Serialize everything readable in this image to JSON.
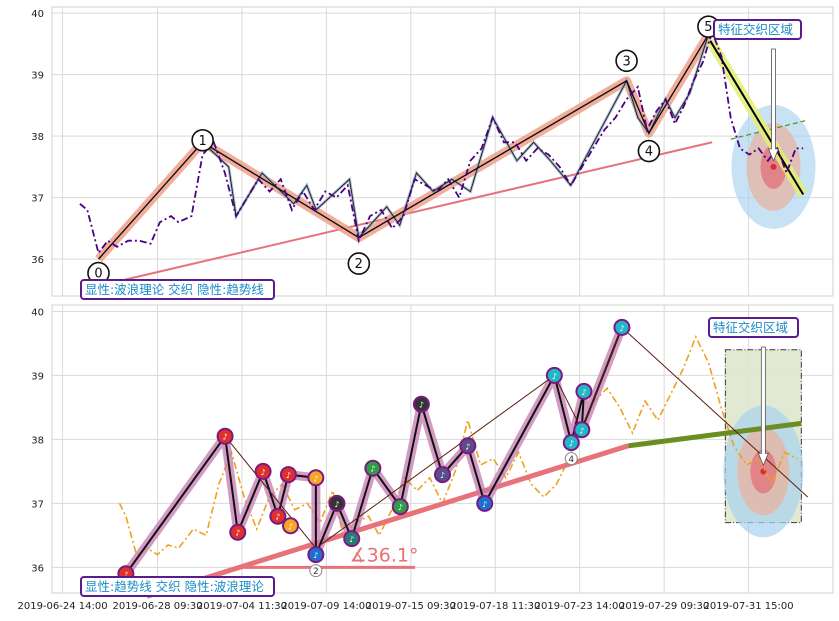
{
  "chart_data": [
    {
      "type": "line",
      "panel": "top",
      "ylim": [
        35.4,
        40.1
      ],
      "yticks": [
        36,
        37,
        38,
        39,
        40
      ],
      "grid": true,
      "price": [
        {
          "x": 0.0,
          "y": 36.9
        },
        {
          "x": 0.4,
          "y": 36.8
        },
        {
          "x": 1.0,
          "y": 36.1
        },
        {
          "x": 1.5,
          "y": 36.3
        },
        {
          "x": 2.0,
          "y": 36.2
        },
        {
          "x": 2.6,
          "y": 36.3
        },
        {
          "x": 3.2,
          "y": 36.3
        },
        {
          "x": 3.8,
          "y": 36.25
        },
        {
          "x": 4.3,
          "y": 36.6
        },
        {
          "x": 4.9,
          "y": 36.7
        },
        {
          "x": 5.3,
          "y": 36.6
        },
        {
          "x": 6.0,
          "y": 36.7
        },
        {
          "x": 6.6,
          "y": 37.7
        },
        {
          "x": 7.2,
          "y": 37.9
        },
        {
          "x": 7.8,
          "y": 37.4
        },
        {
          "x": 8.4,
          "y": 36.7
        },
        {
          "x": 9.0,
          "y": 37.0
        },
        {
          "x": 9.6,
          "y": 37.3
        },
        {
          "x": 10.2,
          "y": 37.1
        },
        {
          "x": 10.8,
          "y": 37.3
        },
        {
          "x": 11.4,
          "y": 36.8
        },
        {
          "x": 12.0,
          "y": 37.1
        },
        {
          "x": 12.6,
          "y": 36.8
        },
        {
          "x": 13.2,
          "y": 37.1
        },
        {
          "x": 13.8,
          "y": 37.0
        },
        {
          "x": 14.4,
          "y": 37.2
        },
        {
          "x": 15.0,
          "y": 36.3
        },
        {
          "x": 15.6,
          "y": 36.7
        },
        {
          "x": 16.2,
          "y": 36.8
        },
        {
          "x": 16.8,
          "y": 36.5
        },
        {
          "x": 17.4,
          "y": 36.7
        },
        {
          "x": 18.0,
          "y": 37.3
        },
        {
          "x": 18.6,
          "y": 37.2
        },
        {
          "x": 19.2,
          "y": 37.1
        },
        {
          "x": 19.8,
          "y": 37.3
        },
        {
          "x": 20.4,
          "y": 37.0
        },
        {
          "x": 21.0,
          "y": 37.6
        },
        {
          "x": 21.6,
          "y": 37.8
        },
        {
          "x": 22.2,
          "y": 38.3
        },
        {
          "x": 22.8,
          "y": 37.9
        },
        {
          "x": 23.4,
          "y": 37.9
        },
        {
          "x": 24.0,
          "y": 37.6
        },
        {
          "x": 24.6,
          "y": 37.8
        },
        {
          "x": 25.2,
          "y": 37.7
        },
        {
          "x": 25.8,
          "y": 37.5
        },
        {
          "x": 26.4,
          "y": 37.2
        },
        {
          "x": 27.0,
          "y": 37.5
        },
        {
          "x": 27.6,
          "y": 37.8
        },
        {
          "x": 28.2,
          "y": 38.1
        },
        {
          "x": 28.8,
          "y": 38.3
        },
        {
          "x": 29.4,
          "y": 38.6
        },
        {
          "x": 30.0,
          "y": 38.8
        },
        {
          "x": 30.5,
          "y": 38.1
        },
        {
          "x": 31.0,
          "y": 38.4
        },
        {
          "x": 31.5,
          "y": 38.6
        },
        {
          "x": 32.0,
          "y": 38.2
        },
        {
          "x": 32.5,
          "y": 38.5
        },
        {
          "x": 33.0,
          "y": 38.9
        },
        {
          "x": 33.5,
          "y": 39.2
        },
        {
          "x": 34.0,
          "y": 39.7
        },
        {
          "x": 34.5,
          "y": 39.3
        },
        {
          "x": 35.0,
          "y": 38.3
        },
        {
          "x": 35.5,
          "y": 37.8
        },
        {
          "x": 36.0,
          "y": 37.7
        },
        {
          "x": 36.5,
          "y": 37.8
        },
        {
          "x": 37.0,
          "y": 37.6
        },
        {
          "x": 37.5,
          "y": 37.8
        },
        {
          "x": 38.0,
          "y": 37.4
        },
        {
          "x": 38.5,
          "y": 37.8
        },
        {
          "x": 38.9,
          "y": 37.8
        }
      ],
      "wave": [
        {
          "label": "0",
          "x": 1.0,
          "y": 36.0
        },
        {
          "label": "1",
          "x": 6.6,
          "y": 37.9
        },
        {
          "label": "2",
          "x": 15.0,
          "y": 36.35
        },
        {
          "label": "3",
          "x": 29.4,
          "y": 38.9
        },
        {
          "label": "4",
          "x": 30.6,
          "y": 38.05
        },
        {
          "label": "5",
          "x": 33.8,
          "y": 39.65
        }
      ],
      "sub_wave": [
        {
          "x": 6.6,
          "y": 37.9
        },
        {
          "x": 8.0,
          "y": 37.5
        },
        {
          "x": 8.4,
          "y": 36.7
        },
        {
          "x": 9.8,
          "y": 37.4
        },
        {
          "x": 11.5,
          "y": 36.9
        },
        {
          "x": 12.2,
          "y": 37.2
        },
        {
          "x": 12.7,
          "y": 36.8
        },
        {
          "x": 14.5,
          "y": 37.3
        },
        {
          "x": 15.0,
          "y": 36.35
        },
        {
          "x": 16.5,
          "y": 36.85
        },
        {
          "x": 17.2,
          "y": 36.55
        },
        {
          "x": 18.1,
          "y": 37.4
        },
        {
          "x": 19.0,
          "y": 37.1
        },
        {
          "x": 20.0,
          "y": 37.3
        },
        {
          "x": 21.0,
          "y": 37.1
        },
        {
          "x": 22.2,
          "y": 38.3
        },
        {
          "x": 23.5,
          "y": 37.6
        },
        {
          "x": 24.4,
          "y": 37.9
        },
        {
          "x": 25.3,
          "y": 37.6
        },
        {
          "x": 26.4,
          "y": 37.2
        },
        {
          "x": 29.4,
          "y": 38.9
        },
        {
          "x": 30.0,
          "y": 38.3
        },
        {
          "x": 30.6,
          "y": 38.05
        },
        {
          "x": 31.5,
          "y": 38.6
        },
        {
          "x": 32.0,
          "y": 38.3
        },
        {
          "x": 32.8,
          "y": 38.7
        },
        {
          "x": 33.8,
          "y": 39.65
        }
      ],
      "trendline": [
        {
          "x": 1.5,
          "y": 35.6
        },
        {
          "x": 34.0,
          "y": 37.9
        }
      ],
      "projection": [
        {
          "x": 33.9,
          "y": 39.55
        },
        {
          "x": 38.9,
          "y": 37.05
        }
      ],
      "channel": [
        {
          "x": 35.0,
          "y": 37.95
        },
        {
          "x": 39.0,
          "y": 38.25
        }
      ],
      "zone": {
        "x": 37.3,
        "y": 37.5,
        "rx": 2.2,
        "ry": 1.0
      },
      "annotations": [
        {
          "text": "特征交织区域",
          "x": 37.1,
          "y": 39.7
        },
        {
          "text": "显性:波浪理论 交织 隐性:趋势线",
          "x": 0.0,
          "y": 35.55
        }
      ]
    },
    {
      "type": "line",
      "panel": "bottom",
      "ylim": [
        35.6,
        40.1
      ],
      "yticks": [
        36,
        37,
        38,
        39,
        40
      ],
      "grid": true,
      "xtick_labels": [
        "2019-06-24 14:00",
        "2019-06-28 09:30",
        "2019-07-04 11:30",
        "2019-07-09 14:00",
        "2019-07-15 09:30",
        "2019-07-18 11:30",
        "2019-07-23 14:00",
        "2019-07-29 09:30",
        "2019-07-31 15:00"
      ],
      "xtick_x": [
        -3.0,
        1.5,
        5.5,
        9.5,
        13.5,
        17.5,
        21.5,
        25.5,
        29.5
      ],
      "price": [
        {
          "x": -0.3,
          "y": 37.0
        },
        {
          "x": 0.0,
          "y": 36.8
        },
        {
          "x": 0.5,
          "y": 36.2
        },
        {
          "x": 1.0,
          "y": 36.3
        },
        {
          "x": 1.5,
          "y": 36.2
        },
        {
          "x": 2.0,
          "y": 36.35
        },
        {
          "x": 2.5,
          "y": 36.3
        },
        {
          "x": 3.2,
          "y": 36.6
        },
        {
          "x": 3.8,
          "y": 36.5
        },
        {
          "x": 4.4,
          "y": 37.3
        },
        {
          "x": 5.0,
          "y": 37.8
        },
        {
          "x": 5.6,
          "y": 37.1
        },
        {
          "x": 6.2,
          "y": 36.6
        },
        {
          "x": 6.8,
          "y": 37.1
        },
        {
          "x": 7.4,
          "y": 37.3
        },
        {
          "x": 8.0,
          "y": 36.9
        },
        {
          "x": 8.6,
          "y": 37.0
        },
        {
          "x": 9.2,
          "y": 36.7
        },
        {
          "x": 9.8,
          "y": 37.2
        },
        {
          "x": 10.3,
          "y": 36.5
        },
        {
          "x": 10.9,
          "y": 36.7
        },
        {
          "x": 11.5,
          "y": 36.8
        },
        {
          "x": 12.0,
          "y": 36.5
        },
        {
          "x": 12.6,
          "y": 36.9
        },
        {
          "x": 13.2,
          "y": 37.4
        },
        {
          "x": 13.8,
          "y": 37.2
        },
        {
          "x": 14.4,
          "y": 37.4
        },
        {
          "x": 15.0,
          "y": 37.0
        },
        {
          "x": 15.6,
          "y": 37.5
        },
        {
          "x": 16.2,
          "y": 38.3
        },
        {
          "x": 16.8,
          "y": 37.6
        },
        {
          "x": 17.4,
          "y": 37.7
        },
        {
          "x": 18.0,
          "y": 37.4
        },
        {
          "x": 18.6,
          "y": 37.8
        },
        {
          "x": 19.2,
          "y": 37.3
        },
        {
          "x": 19.8,
          "y": 37.1
        },
        {
          "x": 20.4,
          "y": 37.3
        },
        {
          "x": 21.0,
          "y": 37.7
        },
        {
          "x": 21.6,
          "y": 38.2
        },
        {
          "x": 22.2,
          "y": 38.6
        },
        {
          "x": 22.8,
          "y": 38.8
        },
        {
          "x": 23.4,
          "y": 38.5
        },
        {
          "x": 24.0,
          "y": 38.1
        },
        {
          "x": 24.6,
          "y": 38.6
        },
        {
          "x": 25.2,
          "y": 38.3
        },
        {
          "x": 25.8,
          "y": 38.7
        },
        {
          "x": 26.4,
          "y": 39.1
        },
        {
          "x": 27.0,
          "y": 39.6
        },
        {
          "x": 27.6,
          "y": 39.2
        },
        {
          "x": 28.2,
          "y": 38.5
        },
        {
          "x": 28.8,
          "y": 37.9
        },
        {
          "x": 29.4,
          "y": 37.6
        },
        {
          "x": 30.0,
          "y": 37.7
        },
        {
          "x": 30.6,
          "y": 37.3
        },
        {
          "x": 31.2,
          "y": 37.8
        },
        {
          "x": 31.8,
          "y": 37.7
        }
      ],
      "ellipse_pattern": {
        "x": 30.2,
        "y": 37.5,
        "rx": 2.0,
        "ry": 1.0
      },
      "pattern_box": {
        "x0": 28.4,
        "x1": 32.0,
        "y0": 36.7,
        "y1": 39.4
      },
      "wave_markers": [
        {
          "x": 0.0,
          "y": 35.9,
          "color": "#e0302c"
        },
        {
          "x": 4.7,
          "y": 38.05,
          "color": "#e0302c"
        },
        {
          "x": 5.3,
          "y": 36.55,
          "color": "#e0302c"
        },
        {
          "x": 6.5,
          "y": 37.5,
          "color": "#e0302c"
        },
        {
          "x": 7.2,
          "y": 36.8,
          "color": "#e0302c"
        },
        {
          "x": 7.7,
          "y": 37.45,
          "color": "#e0302c"
        },
        {
          "x": 7.8,
          "y": 36.65,
          "color": "#f5a623"
        },
        {
          "x": 9.0,
          "y": 37.4,
          "color": "#f5a623"
        },
        {
          "x": 9.0,
          "y": 36.2,
          "color": "#1f6fd1"
        },
        {
          "x": 10.0,
          "y": 37.0,
          "color": "#333333"
        },
        {
          "x": 10.7,
          "y": 36.45,
          "color": "#2a7a75"
        },
        {
          "x": 11.7,
          "y": 37.55,
          "color": "#2e9e46"
        },
        {
          "x": 13.0,
          "y": 36.95,
          "color": "#2e9e46"
        },
        {
          "x": 14.0,
          "y": 38.55,
          "color": "#333333"
        },
        {
          "x": 15.0,
          "y": 37.45,
          "color": "#5a4e8a"
        },
        {
          "x": 16.2,
          "y": 37.9,
          "color": "#5a4e8a"
        },
        {
          "x": 17.0,
          "y": 37.0,
          "color": "#1f6fd1"
        },
        {
          "x": 20.3,
          "y": 39.0,
          "color": "#22b8c8"
        },
        {
          "x": 21.1,
          "y": 37.95,
          "color": "#22b8c8"
        },
        {
          "x": 21.7,
          "y": 38.75,
          "color": "#22b8c8"
        },
        {
          "x": 21.6,
          "y": 38.15,
          "color": "#22b8c8"
        },
        {
          "x": 23.5,
          "y": 39.75,
          "color": "#22b8c8"
        }
      ],
      "trend_angle_text": "∡36.1°",
      "annotations": [
        {
          "text": "特征交织区域",
          "x": 27.0,
          "y": 39.7
        },
        {
          "text": "显性:趋势线 交织 隐性:波浪理论",
          "x": -1.0,
          "y": 35.5
        }
      ]
    }
  ],
  "labels": {
    "top_box": "特征交织区域",
    "top_legend": "显性:波浪理论 交织 隐性:趋势线",
    "bottom_box": "特征交织区域",
    "bottom_legend": "显性:趋势线 交织 隐性:波浪理论",
    "angle": "∡36.1°"
  },
  "colors": {
    "price_top": "#4b0082",
    "price_bottom": "#f0a020",
    "wave_highlight": "#f0a088",
    "trendline": "#e8727a",
    "zone_outer": "#a9d2ef",
    "zone_mid": "#e6b4a4",
    "zone_inner": "#e2707a",
    "box_border": "#5b1b8c",
    "box_text": "#1a8cc8",
    "angle_text": "#e87070",
    "channel": "#6b8e23"
  }
}
